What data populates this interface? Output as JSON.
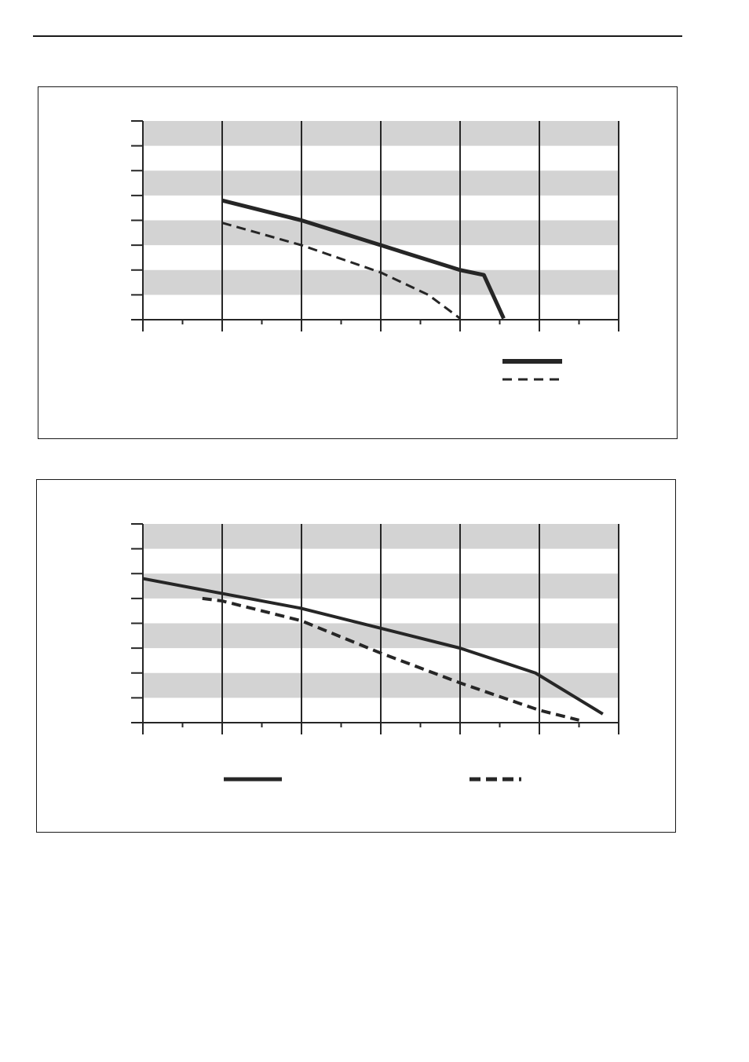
{
  "colors": {
    "band": "#d3d3d3",
    "ink": "#262626"
  },
  "chart_data": [
    {
      "type": "line",
      "ylim": [
        0,
        8
      ],
      "xlim": [
        0,
        12
      ],
      "grid": true,
      "series": [
        {
          "style": "solid",
          "x": [
            2,
            4,
            6,
            8,
            8.6,
            9.1
          ],
          "y": [
            4.8,
            4,
            3,
            2,
            1.8,
            0.05
          ]
        },
        {
          "style": "dashed",
          "x": [
            2,
            4,
            6,
            7.2,
            8
          ],
          "y": [
            3.9,
            3,
            1.9,
            1,
            0.05
          ]
        }
      ]
    },
    {
      "type": "line",
      "ylim": [
        0,
        8
      ],
      "xlim": [
        0,
        12
      ],
      "grid": true,
      "series": [
        {
          "style": "solid",
          "x": [
            0,
            2,
            4,
            6,
            8,
            9.9,
            11.6
          ],
          "y": [
            5.8,
            5.2,
            4.6,
            3.8,
            3,
            2,
            0.35
          ]
        },
        {
          "style": "dashed",
          "x": [
            1.5,
            2,
            4,
            6,
            8,
            10,
            11
          ],
          "y": [
            5,
            4.9,
            4.1,
            2.8,
            1.6,
            0.5,
            0.1
          ]
        }
      ]
    }
  ]
}
